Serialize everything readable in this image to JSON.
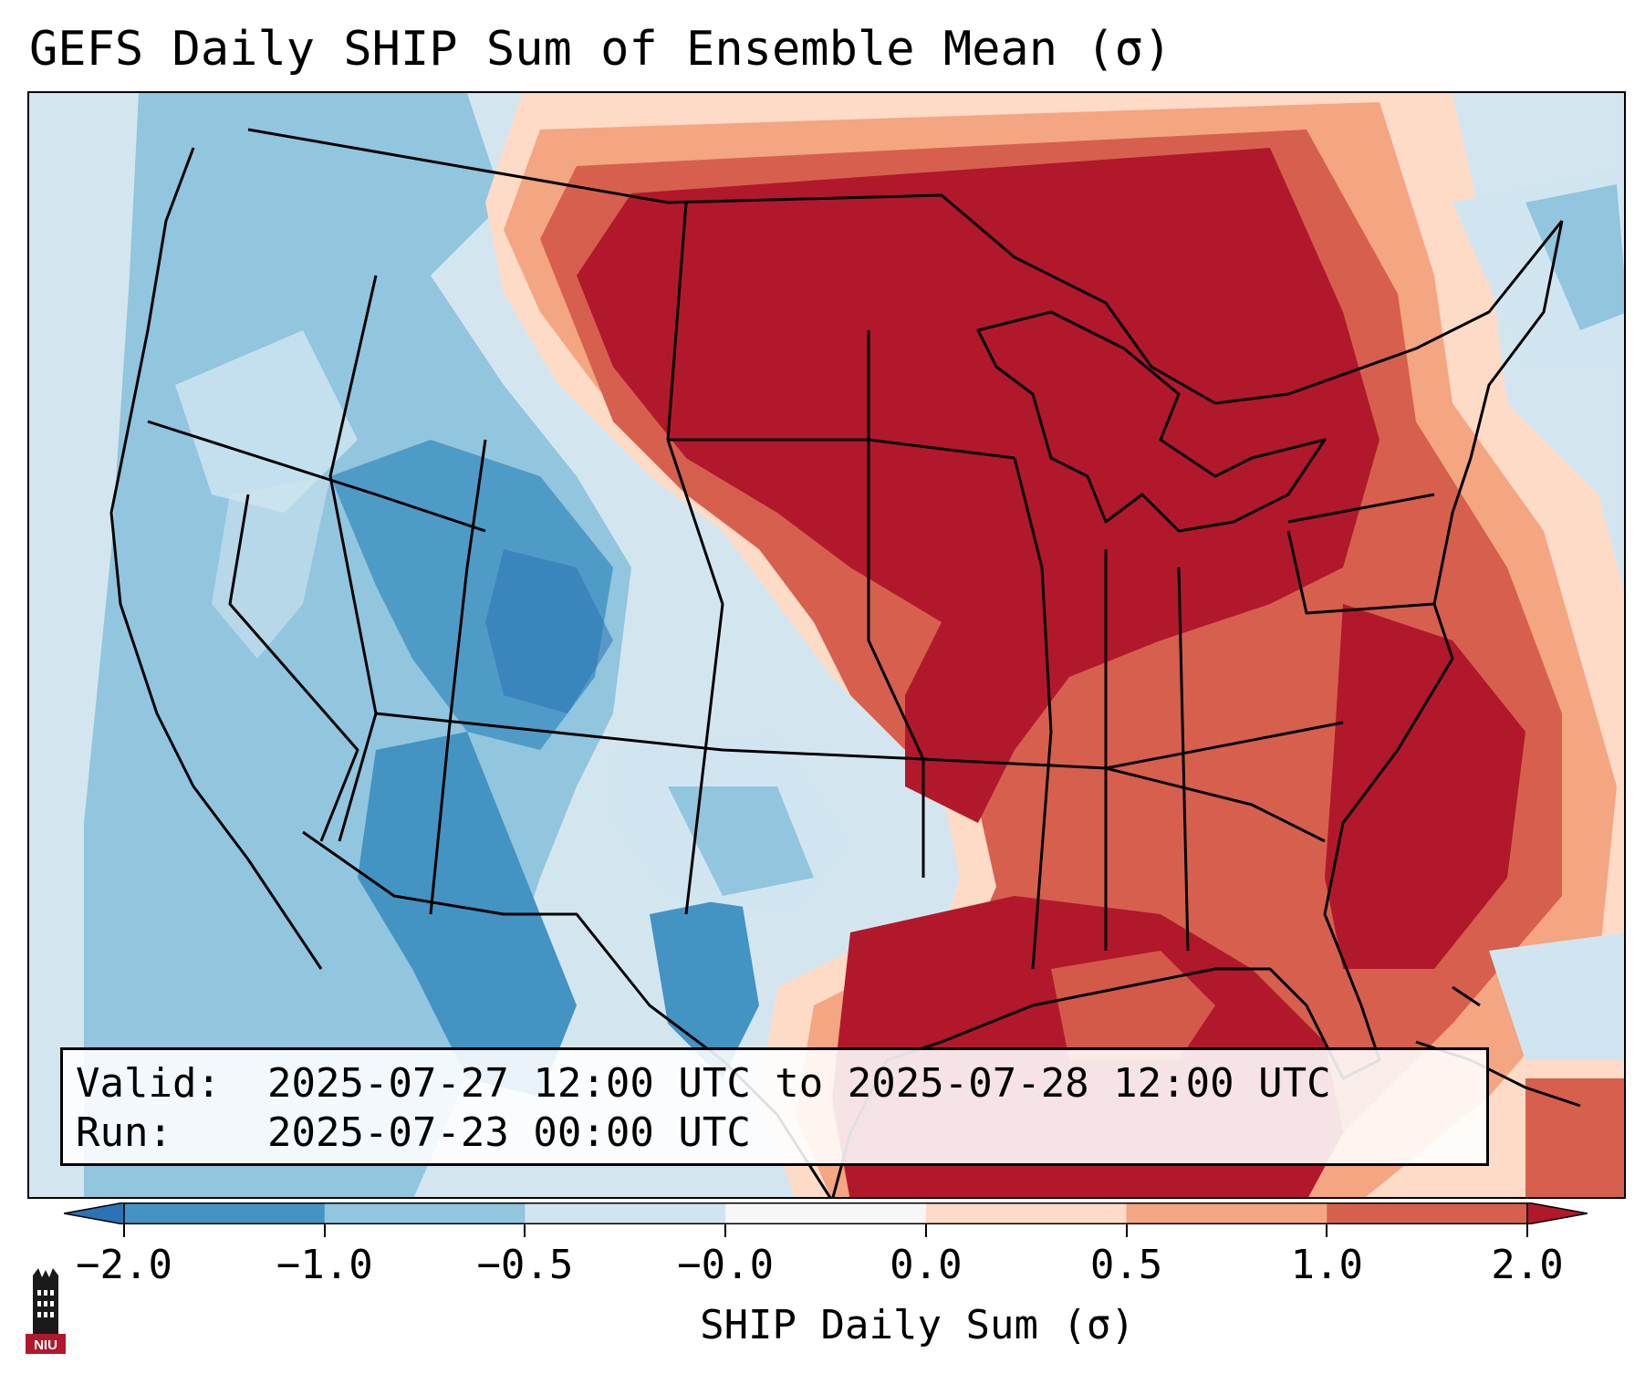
{
  "title": "GEFS Daily SHIP Sum of Ensemble Mean (σ)",
  "info": {
    "valid_label": "Valid:",
    "valid_value": "2025-07-27 12:00 UTC to 2025-07-28 12:00 UTC",
    "run_label": "Run:",
    "run_value": "2025-07-23 00:00 UTC"
  },
  "colorbar": {
    "label": "SHIP Daily Sum (σ)",
    "ticks": [
      "−2.0",
      "−1.0",
      "−0.5",
      "−0.0",
      "0.0",
      "0.5",
      "1.0",
      "2.0"
    ],
    "colors": [
      "#2b73b5",
      "#4393c3",
      "#92c5de",
      "#d1e5f0",
      "#f7f7f7",
      "#fddbc7",
      "#f4a582",
      "#d6604d",
      "#b2182b"
    ],
    "extend": "both"
  },
  "logo": {
    "text": "NIU",
    "icon": "niu-tower-icon"
  },
  "map": {
    "projection": "Lambert conformal, CONUS",
    "colors": {
      "background": "#d3e6f0",
      "strong_high": "#b2182b",
      "high": "#d6604d",
      "moderate_high": "#f4a582",
      "slight_high": "#fddbc7",
      "slight_low": "#d1e5f0",
      "moderate_low": "#92c5de",
      "low": "#4393c3"
    }
  }
}
